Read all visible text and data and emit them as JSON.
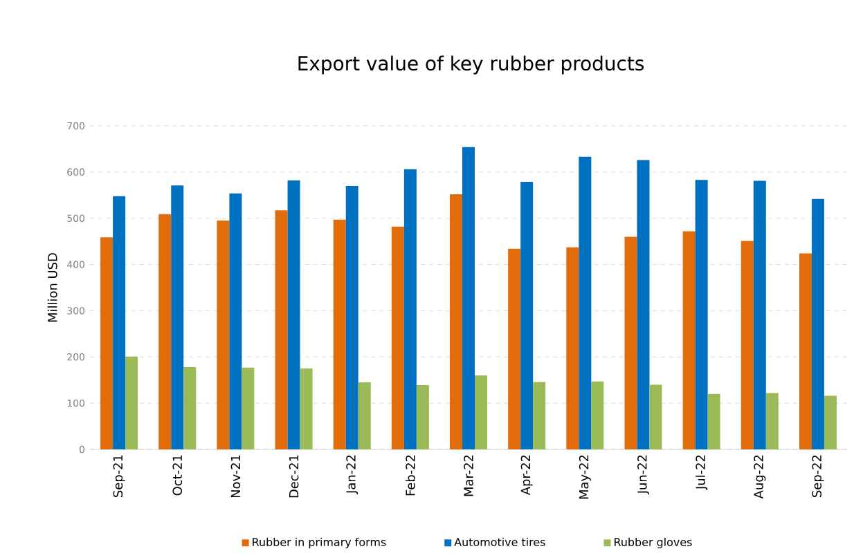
{
  "chart_data": {
    "type": "bar",
    "title": "Export value of key rubber products",
    "ylabel": "Million USD",
    "categories": [
      "Sep-21",
      "Oct-21",
      "Nov-21",
      "Dec-21",
      "Jan-22",
      "Feb-22",
      "Mar-22",
      "Apr-22",
      "May-22",
      "Jun-22",
      "Jul-22",
      "Aug-22",
      "Sep-22"
    ],
    "series": [
      {
        "name": "Rubber in primary forms",
        "color": "#e36c0a",
        "values": [
          459,
          509,
          495,
          517,
          497,
          482,
          552,
          434,
          437,
          460,
          472,
          451,
          424
        ]
      },
      {
        "name": "Automotive tires",
        "color": "#0070c0",
        "values": [
          548,
          571,
          554,
          582,
          570,
          606,
          654,
          579,
          633,
          626,
          583,
          581,
          542
        ]
      },
      {
        "name": "Rubber gloves",
        "color": "#9bbb59",
        "values": [
          201,
          178,
          177,
          175,
          145,
          139,
          160,
          146,
          147,
          140,
          120,
          122,
          116
        ]
      }
    ],
    "ylim": [
      0,
      700
    ],
    "yticks": [
      0,
      100,
      200,
      300,
      400,
      500,
      600,
      700
    ],
    "grid": "y",
    "legend": "bottom"
  }
}
